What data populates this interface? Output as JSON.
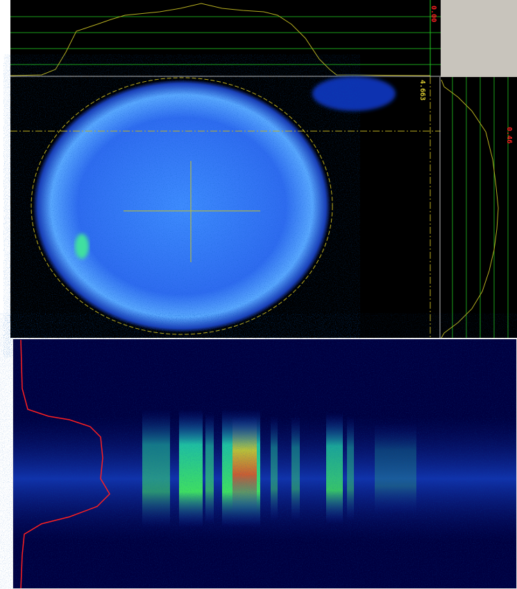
{
  "readouts": {
    "top_profile": "0.00",
    "crosshair": "4.663",
    "side_profile": "0.46"
  }
}
